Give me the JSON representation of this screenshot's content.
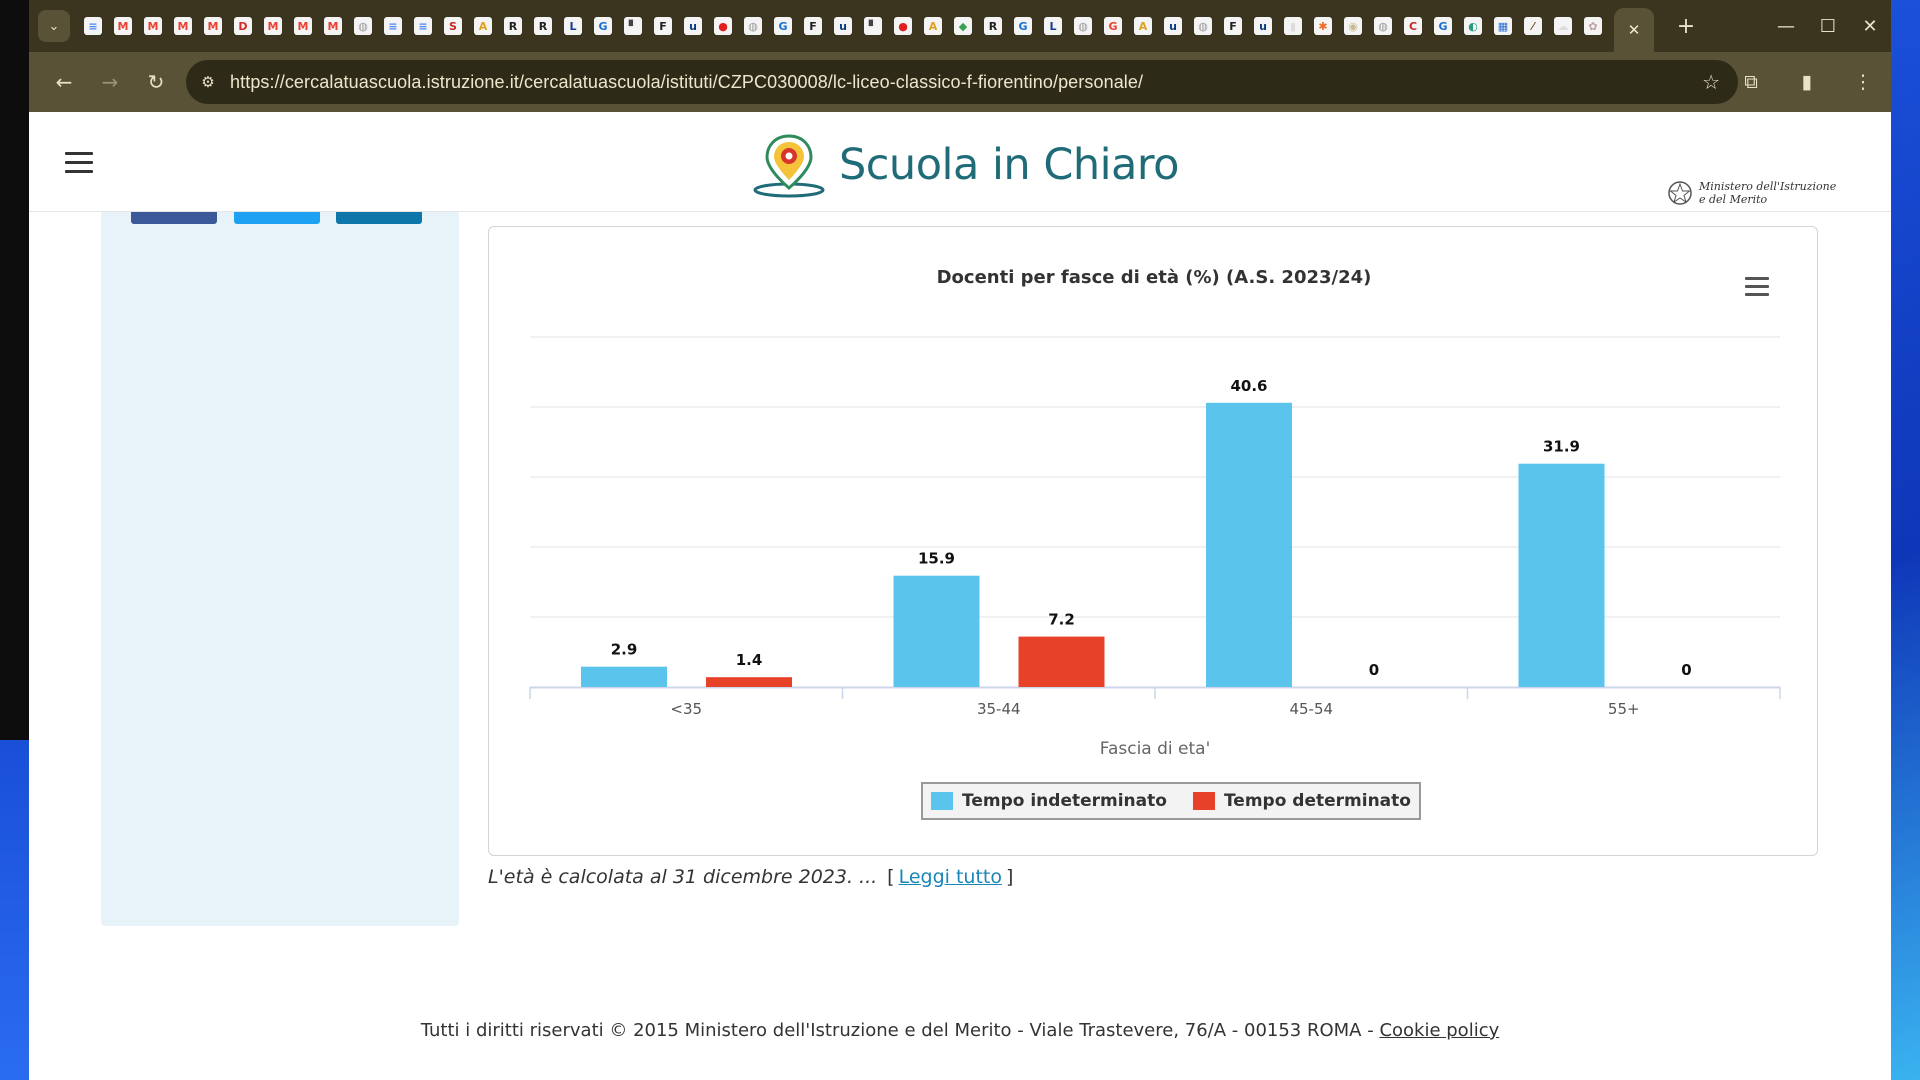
{
  "browser": {
    "favicons": [
      {
        "name": "docs-icon",
        "glyph": "≡",
        "color": "#4a86f4"
      },
      {
        "name": "gmail-icon",
        "glyph": "M",
        "color": "#ea4335"
      },
      {
        "name": "gmail-icon",
        "glyph": "M",
        "color": "#ea4335"
      },
      {
        "name": "gmail-icon",
        "glyph": "M",
        "color": "#ea4335"
      },
      {
        "name": "gmail-icon",
        "glyph": "M",
        "color": "#ea4335"
      },
      {
        "name": "dazn-icon",
        "glyph": "D",
        "color": "#d62b2b"
      },
      {
        "name": "gmail-icon",
        "glyph": "M",
        "color": "#ea4335"
      },
      {
        "name": "gmail-icon",
        "glyph": "M",
        "color": "#ea4335"
      },
      {
        "name": "gmail-icon",
        "glyph": "M",
        "color": "#ea4335"
      },
      {
        "name": "globe-icon",
        "glyph": "◍",
        "color": "#9a9a9a"
      },
      {
        "name": "docs-icon",
        "glyph": "≡",
        "color": "#4a86f4"
      },
      {
        "name": "docs-icon",
        "glyph": "≡",
        "color": "#4a86f4"
      },
      {
        "name": "news-icon",
        "glyph": "S",
        "color": "#c62828"
      },
      {
        "name": "image-icon",
        "glyph": "A",
        "color": "#e0a020"
      },
      {
        "name": "r-icon",
        "glyph": "R",
        "color": "#222222"
      },
      {
        "name": "r-icon",
        "glyph": "R",
        "color": "#222222"
      },
      {
        "name": "l-icon",
        "glyph": "L",
        "color": "#1a3c8f"
      },
      {
        "name": "g-icon",
        "glyph": "G",
        "color": "#1a6fd0"
      },
      {
        "name": "doc-icon",
        "glyph": "▘",
        "color": "#444444"
      },
      {
        "name": "f-icon",
        "glyph": "F",
        "color": "#222222"
      },
      {
        "name": "uk-icon",
        "glyph": "u",
        "color": "#0a3a7a"
      },
      {
        "name": "paw-icon",
        "glyph": "●",
        "color": "#e02020"
      },
      {
        "name": "globe-icon",
        "glyph": "◍",
        "color": "#9a9a9a"
      },
      {
        "name": "g-icon",
        "glyph": "G",
        "color": "#1a6fd0"
      },
      {
        "name": "f-icon",
        "glyph": "F",
        "color": "#222222"
      },
      {
        "name": "uk-icon",
        "glyph": "u",
        "color": "#0a3a7a"
      },
      {
        "name": "doc-icon",
        "glyph": "▘",
        "color": "#444444"
      },
      {
        "name": "paw-icon",
        "glyph": "●",
        "color": "#e02020"
      },
      {
        "name": "image-icon",
        "glyph": "A",
        "color": "#e0a020"
      },
      {
        "name": "pin-icon",
        "glyph": "◆",
        "color": "#3aa050"
      },
      {
        "name": "r-icon",
        "glyph": "R",
        "color": "#222222"
      },
      {
        "name": "g-icon",
        "glyph": "G",
        "color": "#1a6fd0"
      },
      {
        "name": "l-icon",
        "glyph": "L",
        "color": "#1a3c8f"
      },
      {
        "name": "globe-icon",
        "glyph": "◍",
        "color": "#9a9a9a"
      },
      {
        "name": "google-icon",
        "glyph": "G",
        "color": "#ea4335"
      },
      {
        "name": "image-icon",
        "glyph": "A",
        "color": "#e0a020"
      },
      {
        "name": "uk-icon",
        "glyph": "u",
        "color": "#0a3a7a"
      },
      {
        "name": "globe-icon",
        "glyph": "◍",
        "color": "#9a9a9a"
      },
      {
        "name": "f-icon",
        "glyph": "F",
        "color": "#222222"
      },
      {
        "name": "uk-icon",
        "glyph": "u",
        "color": "#0a3a7a"
      },
      {
        "name": "file-icon",
        "glyph": "▮",
        "color": "#dddddd"
      },
      {
        "name": "joomla-icon",
        "glyph": "✱",
        "color": "#f06a20"
      },
      {
        "name": "chrome-icon",
        "glyph": "◉",
        "color": "#c8b890"
      },
      {
        "name": "globe-icon",
        "glyph": "◍",
        "color": "#9a9a9a"
      },
      {
        "name": "c-icon",
        "glyph": "C",
        "color": "#c62828"
      },
      {
        "name": "g-icon",
        "glyph": "G",
        "color": "#1a6fd0"
      },
      {
        "name": "map-icon",
        "glyph": "◐",
        "color": "#2a9a80"
      },
      {
        "name": "chart-icon",
        "glyph": "▦",
        "color": "#2a6fd0"
      },
      {
        "name": "slash-icon",
        "glyph": "⁄",
        "color": "#7a5a30"
      },
      {
        "name": "cloud-icon",
        "glyph": "☁",
        "color": "#dddddd"
      },
      {
        "name": "seal-icon",
        "glyph": "✿",
        "color": "#c0a0a0"
      }
    ],
    "url": "https://cercalatuascuola.istruzione.it/cercalatuascuola/istituti/CZPC030008/lc-liceo-classico-f-fiorentino/personale/"
  },
  "header": {
    "logo_text": "Scuola in Chiaro",
    "ministry_line1": "Ministero dell'Istruzione",
    "ministry_line2": "e del Merito"
  },
  "sidebar": {
    "social_colors": [
      "#3b5998",
      "#1da1f2",
      "#0e76a8"
    ]
  },
  "chart_data": {
    "type": "bar",
    "title": "Docenti per fasce di età (%) (A.S. 2023/24)",
    "xlabel": "Fascia di eta'",
    "ylabel": "",
    "categories": [
      "<35",
      "35-44",
      "45-54",
      "55+"
    ],
    "series": [
      {
        "name": "Tempo indeterminato",
        "color": "#5bc4ed",
        "values": [
          2.9,
          15.9,
          40.6,
          31.9
        ]
      },
      {
        "name": "Tempo determinato",
        "color": "#e8412a",
        "values": [
          1.4,
          7.2,
          0,
          0
        ]
      }
    ],
    "ylim": [
      0,
      50
    ],
    "grid": true,
    "legend": "bottom-center"
  },
  "note": {
    "text": "L'età è calcolata al 31 dicembre 2023. ...",
    "bracket_open": "[",
    "link": "Leggi tutto",
    "bracket_close": "]"
  },
  "footer": {
    "text": "Tutti i diritti riservati © 2015 Ministero dell'Istruzione e del Merito - Viale Trastevere, 76/A - 00153 ROMA - ",
    "link": "Cookie policy"
  }
}
